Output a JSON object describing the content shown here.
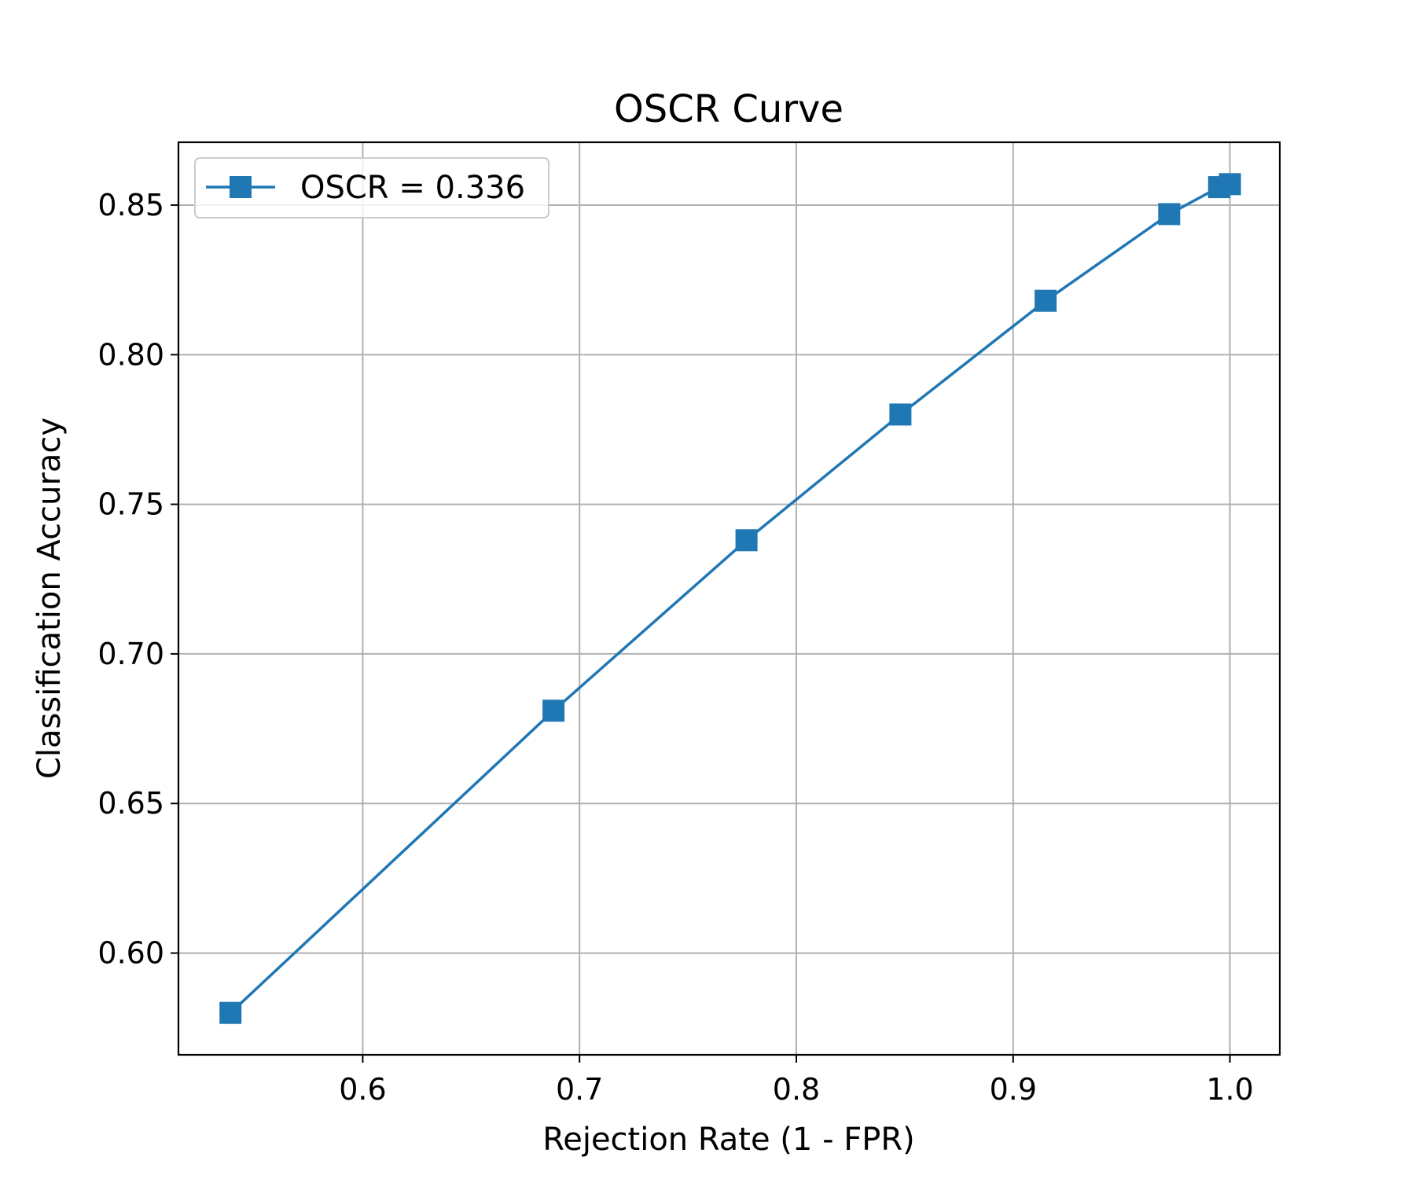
{
  "chart_data": {
    "type": "line",
    "title": "OSCR Curve",
    "xlabel": "Rejection Rate (1 - FPR)",
    "ylabel": "Classification Accuracy",
    "xlim": [
      0.515,
      1.023
    ],
    "ylim": [
      0.566,
      0.871
    ],
    "x_ticks": [
      0.6,
      0.7,
      0.8,
      0.9,
      1.0
    ],
    "x_tick_labels": [
      "0.6",
      "0.7",
      "0.8",
      "0.9",
      "1.0"
    ],
    "y_ticks": [
      0.6,
      0.65,
      0.7,
      0.75,
      0.8,
      0.85
    ],
    "y_tick_labels": [
      "0.60",
      "0.65",
      "0.70",
      "0.75",
      "0.80",
      "0.85"
    ],
    "grid": true,
    "legend_position": "top-left",
    "series": [
      {
        "name": "OSCR = 0.336",
        "color": "#1f77b4",
        "marker": "square",
        "x": [
          0.539,
          0.688,
          0.777,
          0.848,
          0.915,
          0.972,
          0.995,
          1.0
        ],
        "y": [
          0.58,
          0.681,
          0.738,
          0.78,
          0.818,
          0.847,
          0.856,
          0.857
        ]
      }
    ]
  }
}
